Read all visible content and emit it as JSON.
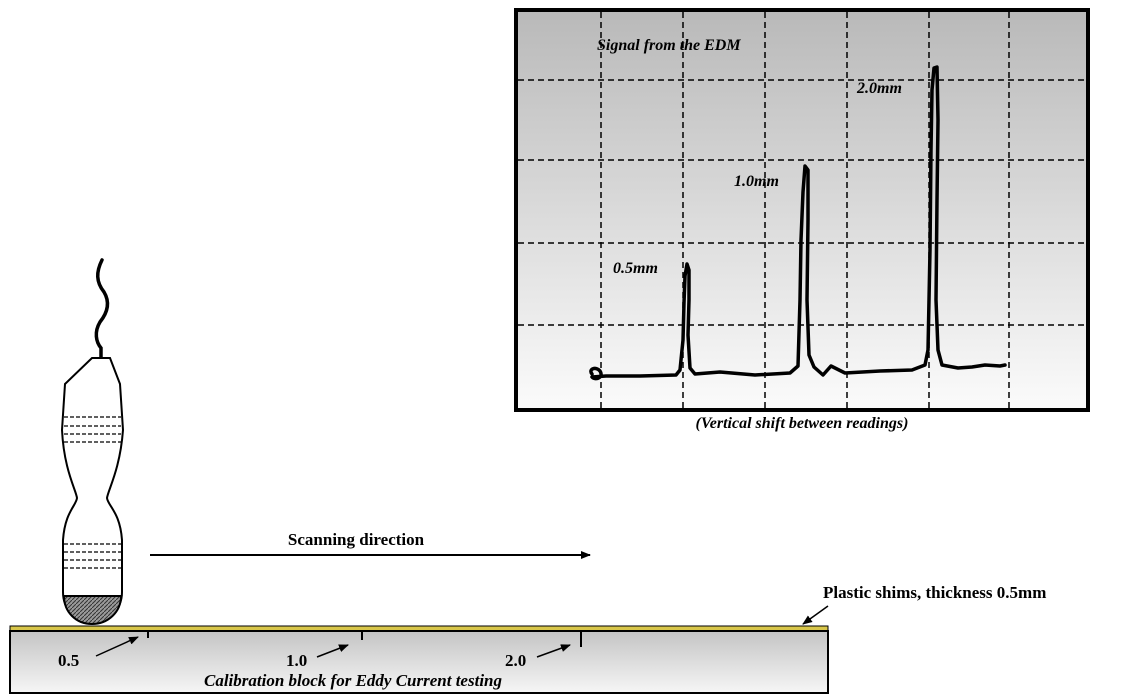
{
  "screen": {
    "title": "Signal from the EDM",
    "peaks": [
      {
        "label": "0.5mm"
      },
      {
        "label": "1.0mm"
      },
      {
        "label": "2.0mm"
      }
    ],
    "caption": "(Vertical shift between readings)"
  },
  "scan": {
    "direction_label": "Scanning direction"
  },
  "shims": {
    "label": "Plastic shims, thickness 0.5mm",
    "color": "#d8c64a"
  },
  "block": {
    "notches": [
      {
        "label": "0.5"
      },
      {
        "label": "1.0"
      },
      {
        "label": "2.0"
      }
    ],
    "caption": "Calibration block for Eddy Current testing"
  }
}
